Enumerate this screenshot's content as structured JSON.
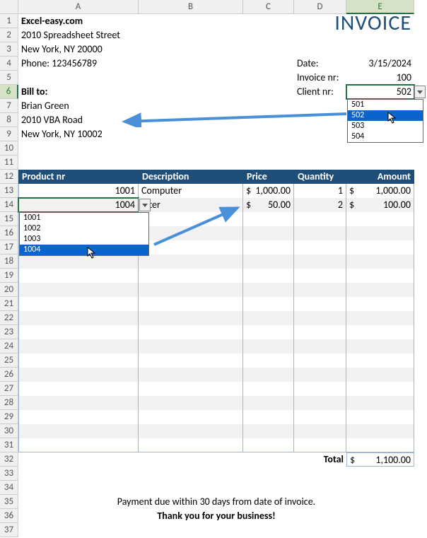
{
  "columns": [
    {
      "label": "A",
      "width": 170,
      "selected": false
    },
    {
      "label": "B",
      "width": 148,
      "selected": false
    },
    {
      "label": "C",
      "width": 72,
      "selected": false
    },
    {
      "label": "D",
      "width": 74,
      "selected": false
    },
    {
      "label": "E",
      "width": 96,
      "selected": true
    }
  ],
  "rows": [
    1,
    2,
    3,
    4,
    5,
    6,
    7,
    8,
    9,
    10,
    11,
    12,
    13,
    14,
    15,
    16,
    17,
    18,
    19,
    20,
    21,
    22,
    23,
    24,
    25,
    26,
    27,
    28,
    29,
    30,
    31,
    32,
    33,
    34,
    35,
    36,
    37
  ],
  "selected_row": 6,
  "company": {
    "name": "Excel-easy.com",
    "street": "2010 Spreadsheet Street",
    "city": "New York, NY 20000",
    "phone": "Phone: 123456789"
  },
  "invoice_title": "INVOICE",
  "meta": {
    "date_label": "Date:",
    "date_val": "3/15/2024",
    "invno_label": "Invoice nr:",
    "invno_val": "100",
    "client_label": "Client nr:",
    "client_val": "502"
  },
  "billto": {
    "label": "Bill to:",
    "name": "Brian Green",
    "street": "2010 VBA Road",
    "city": "New York, NY 10002"
  },
  "table": {
    "headers": [
      "Product nr",
      "Description",
      "Price",
      "Quantity",
      "Amount"
    ],
    "rows": [
      {
        "prod": "1001",
        "desc": "Computer",
        "price": "1,000.00",
        "qty": "1",
        "amount": "1,000.00"
      },
      {
        "prod": "1004",
        "desc": "inter",
        "price": "50.00",
        "qty": "2",
        "amount": "100.00"
      }
    ],
    "total_label": "Total",
    "total_val": "1,100.00"
  },
  "footer": {
    "line1": "Payment due within 30 days from date of invoice.",
    "line2": "Thank you for your business!"
  },
  "client_dd": {
    "options": [
      "501",
      "502",
      "503",
      "504"
    ],
    "selected": "502"
  },
  "product_dd": {
    "options": [
      "1001",
      "1002",
      "1003",
      "1004"
    ],
    "selected": "1004"
  },
  "colors": {
    "accent": "#1f4e79",
    "arrow": "#4a90d9",
    "sel_green": "#217346",
    "dd_sel": "#0a64ce"
  }
}
